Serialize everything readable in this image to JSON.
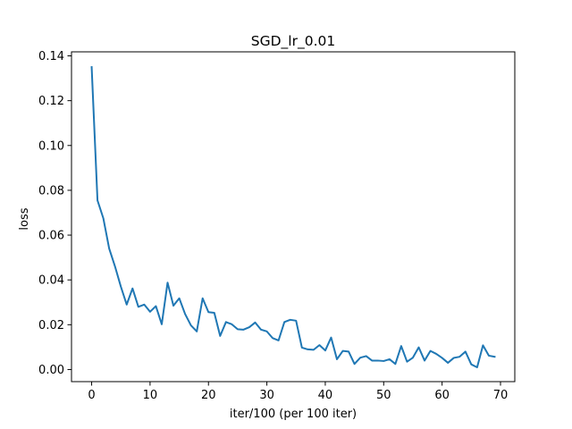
{
  "chart_data": {
    "type": "line",
    "title": "SGD_lr_0.01",
    "xlabel": "iter/100 (per 100 iter)",
    "ylabel": "loss",
    "xlim": [
      -3.45,
      72.45
    ],
    "ylim": [
      -0.0054,
      0.1418
    ],
    "xticks": [
      0,
      10,
      20,
      30,
      40,
      50,
      60,
      70
    ],
    "xtick_labels": [
      "0",
      "10",
      "20",
      "30",
      "40",
      "50",
      "60",
      "70"
    ],
    "yticks": [
      0.0,
      0.02,
      0.04,
      0.06,
      0.08,
      0.1,
      0.12,
      0.14
    ],
    "ytick_labels": [
      "0.00",
      "0.02",
      "0.04",
      "0.06",
      "0.08",
      "0.10",
      "0.12",
      "0.14"
    ],
    "grid": false,
    "series": [
      {
        "color": "#1f77b4",
        "x": [
          0,
          1,
          2,
          3,
          4,
          5,
          6,
          7,
          8,
          9,
          10,
          11,
          12,
          13,
          14,
          15,
          16,
          17,
          18,
          19,
          20,
          21,
          22,
          23,
          24,
          25,
          26,
          27,
          28,
          29,
          30,
          31,
          32,
          33,
          34,
          35,
          36,
          37,
          38,
          39,
          40,
          41,
          42,
          43,
          44,
          45,
          46,
          47,
          48,
          49,
          50,
          51,
          52,
          53,
          54,
          55,
          56,
          57,
          58,
          59,
          60,
          61,
          62,
          63,
          64,
          65,
          66,
          67,
          68,
          69
        ],
        "y": [
          0.135,
          0.0755,
          0.0675,
          0.054,
          0.046,
          0.037,
          0.029,
          0.0362,
          0.028,
          0.029,
          0.0258,
          0.0283,
          0.0202,
          0.0388,
          0.0285,
          0.0318,
          0.0248,
          0.0197,
          0.017,
          0.0318,
          0.0256,
          0.0253,
          0.015,
          0.0212,
          0.0202,
          0.018,
          0.0178,
          0.0189,
          0.021,
          0.0178,
          0.017,
          0.014,
          0.013,
          0.0212,
          0.0222,
          0.0218,
          0.0098,
          0.009,
          0.0088,
          0.0109,
          0.0085,
          0.0143,
          0.0046,
          0.0083,
          0.008,
          0.0025,
          0.0053,
          0.006,
          0.004,
          0.004,
          0.0038,
          0.0046,
          0.0025,
          0.0105,
          0.0035,
          0.0053,
          0.0099,
          0.004,
          0.0083,
          0.007,
          0.0052,
          0.003,
          0.0052,
          0.0057,
          0.008,
          0.0023,
          0.001,
          0.0108,
          0.0062,
          0.0057
        ]
      }
    ]
  }
}
